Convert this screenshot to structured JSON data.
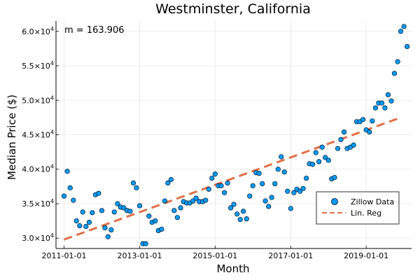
{
  "chart_data": {
    "type": "scatter",
    "title": "Westminster, California",
    "xlabel": "Month",
    "ylabel": "Median Price ($)",
    "annotation": "m = 163.906",
    "xlim": [
      "2010-10-15",
      "2020-03-15"
    ],
    "ylim": [
      28500,
      61500
    ],
    "x_ticks": [
      "2011-01-01",
      "2013-01-01",
      "2015-01-01",
      "2017-01-01",
      "2019-01-01"
    ],
    "y_ticks": [
      {
        "value": 30000,
        "mantissa": "3.0",
        "exponent": "4"
      },
      {
        "value": 35000,
        "mantissa": "3.5",
        "exponent": "4"
      },
      {
        "value": 40000,
        "mantissa": "4.0",
        "exponent": "4"
      },
      {
        "value": 45000,
        "mantissa": "4.5",
        "exponent": "4"
      },
      {
        "value": 50000,
        "mantissa": "5.0",
        "exponent": "4"
      },
      {
        "value": 55000,
        "mantissa": "5.5",
        "exponent": "4"
      },
      {
        "value": 60000,
        "mantissa": "6.0",
        "exponent": "4"
      }
    ],
    "tick_base": "×10",
    "grid": true,
    "legend_position": "bottom-right",
    "series": [
      {
        "name": "Zillow Data",
        "kind": "scatter",
        "color": "#009AFA",
        "start": "2011-01-01",
        "frequency": "monthly",
        "values": [
          36100,
          39700,
          37300,
          35500,
          32500,
          31800,
          33800,
          31700,
          32300,
          33700,
          36300,
          36500,
          34000,
          31500,
          30200,
          31200,
          33800,
          35000,
          34500,
          34400,
          34000,
          33900,
          38000,
          37300,
          34700,
          29200,
          29200,
          33200,
          32300,
          32500,
          31100,
          31300,
          35400,
          38000,
          38500,
          34000,
          33000,
          34400,
          35300,
          35100,
          35100,
          35400,
          35800,
          35300,
          35300,
          35500,
          37100,
          38700,
          39300,
          37600,
          37600,
          36600,
          38000,
          34400,
          34900,
          33500,
          32700,
          33900,
          32800,
          36100,
          37600,
          39500,
          39400,
          37900,
          35400,
          34600,
          35900,
          37900,
          40000,
          41800,
          39600,
          36800,
          34300,
          36600,
          37100,
          36800,
          37200,
          38700,
          40800,
          40700,
          42400,
          41100,
          43200,
          41700,
          41300,
          38600,
          38800,
          43000,
          44300,
          45400,
          43000,
          43200,
          43500,
          46900,
          46900,
          47200,
          45700,
          45400,
          47000,
          48900,
          49600,
          49600,
          48900,
          50800,
          49900,
          53900,
          55600,
          60000,
          60700,
          57800
        ]
      },
      {
        "name": "Lin. Reg",
        "kind": "line",
        "color": "#E26F46",
        "style": "dashed",
        "start": "2011-01-01",
        "end": "2019-12-01",
        "y_start": 29800,
        "y_end": 47500
      }
    ]
  }
}
